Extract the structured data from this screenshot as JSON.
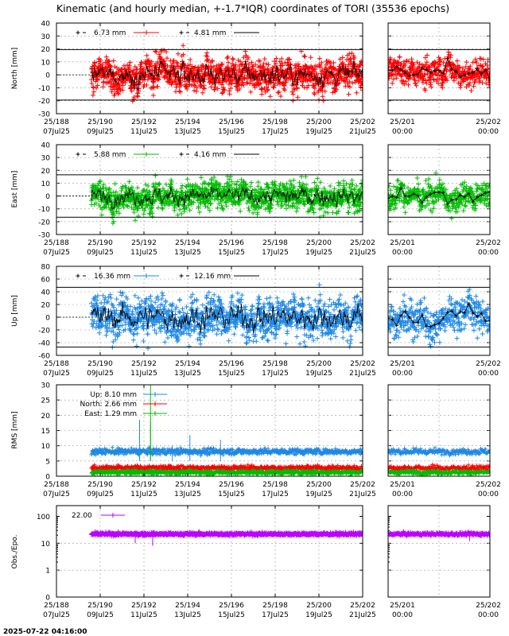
{
  "title": "Kinematic (and hourly median, +-1.7*IQR) coordinates of TORI (35536 epochs)",
  "footer_timestamp": "2025-07-22 04:16:00",
  "colors": {
    "north": "#ff0000",
    "east": "#00bb00",
    "up": "#1e88e5",
    "obs": "#bb00ff",
    "median": "#000000"
  },
  "time_axis": {
    "main_ticks": [
      {
        "top": "25/188",
        "bottom": "07Jul25"
      },
      {
        "top": "25/190",
        "bottom": "09Jul25"
      },
      {
        "top": "25/192",
        "bottom": "11Jul25"
      },
      {
        "top": "25/194",
        "bottom": "13Jul25"
      },
      {
        "top": "25/196",
        "bottom": "15Jul25"
      },
      {
        "top": "25/198",
        "bottom": "17Jul25"
      },
      {
        "top": "25/200",
        "bottom": "19Jul25"
      },
      {
        "top": "25/202",
        "bottom": "21Jul25"
      }
    ],
    "zoom_ticks": [
      {
        "top": "25/201",
        "bottom": "00:00"
      },
      {
        "top": "25/202",
        "bottom": "00:00"
      }
    ],
    "main_range_days": [
      188,
      202
    ],
    "data_start_day": 189.6,
    "data_end_day": 202,
    "zoom_range_days": [
      201,
      202
    ]
  },
  "chart_data": [
    {
      "type": "scatter",
      "name": "north",
      "ylabel": "North [mm]",
      "ylim": [
        -30,
        40
      ],
      "yticks": [
        -30,
        -20,
        -10,
        0,
        10,
        20,
        30,
        40
      ],
      "band": [
        -19.5,
        19.5
      ],
      "legend": [
        {
          "label": "6.73 mm",
          "style": "points"
        },
        {
          "label": "4.81 mm",
          "style": "line"
        }
      ],
      "scatter_sd": 6.73,
      "median_sd": 4.81
    },
    {
      "type": "scatter",
      "name": "east",
      "ylabel": "East [mm]",
      "ylim": [
        -30,
        40
      ],
      "yticks": [
        -30,
        -20,
        -10,
        0,
        10,
        20,
        30,
        40
      ],
      "band": [
        -16.5,
        16.5
      ],
      "legend": [
        {
          "label": "5.88 mm",
          "style": "points"
        },
        {
          "label": "4.16 mm",
          "style": "line"
        }
      ],
      "scatter_sd": 5.88,
      "median_sd": 4.16
    },
    {
      "type": "scatter",
      "name": "up",
      "ylabel": "Up [mm]",
      "ylim": [
        -60,
        80
      ],
      "yticks": [
        -60,
        -40,
        -20,
        0,
        20,
        40,
        60,
        80
      ],
      "band": [
        -47,
        47
      ],
      "legend": [
        {
          "label": "16.36 mm",
          "style": "points"
        },
        {
          "label": "12.16 mm",
          "style": "line"
        }
      ],
      "scatter_sd": 16.36,
      "median_sd": 12.16
    },
    {
      "type": "scatter",
      "name": "rms",
      "ylabel": "RMS [mm]",
      "ylim": [
        0,
        30
      ],
      "yticks": [
        0,
        5,
        10,
        15,
        20,
        25,
        30
      ],
      "legend": [
        {
          "label": "Up:  8.10 mm",
          "series": "up"
        },
        {
          "label": "North:  2.66 mm",
          "series": "north"
        },
        {
          "label": "East:  1.29 mm",
          "series": "east"
        }
      ],
      "series": [
        {
          "name": "Up",
          "mean": 8.1
        },
        {
          "name": "North",
          "mean": 2.66
        },
        {
          "name": "East",
          "mean": 1.29
        }
      ]
    },
    {
      "type": "scatter",
      "name": "obs",
      "ylabel": "Obs./Epo.",
      "yscale": "log",
      "ylim": [
        0,
        150
      ],
      "ytick_labels": [
        "0",
        "1",
        "10",
        "100"
      ],
      "legend": [
        {
          "label": "22.00",
          "style": "points"
        }
      ],
      "mean": 22.0
    }
  ]
}
